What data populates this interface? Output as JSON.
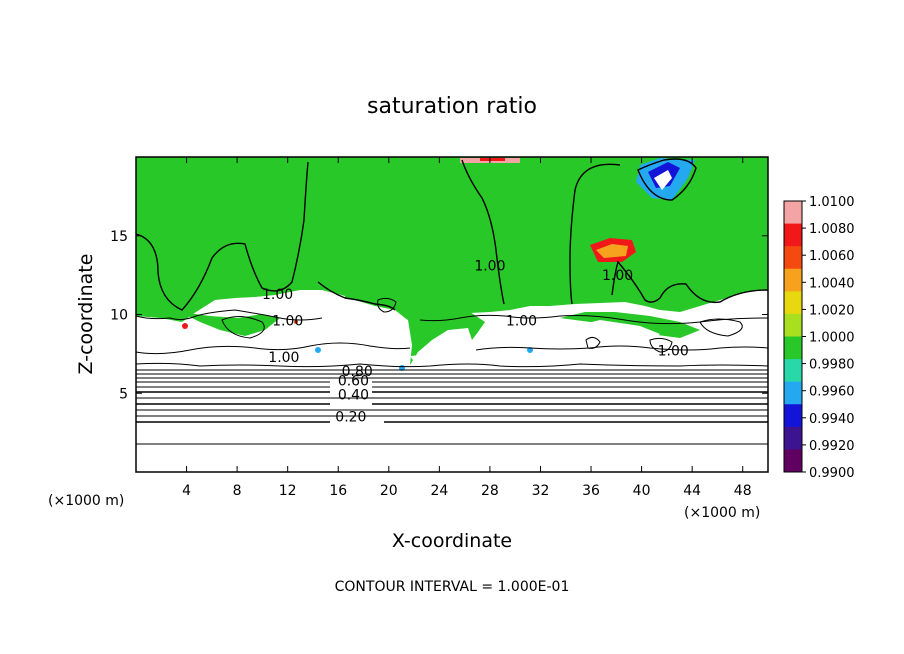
{
  "chart_data": {
    "type": "heatmap",
    "title": "saturation ratio",
    "xlabel": "X-coordinate",
    "ylabel": "Z-coordinate",
    "x_unit_left": "(×1000 m)",
    "x_unit_right": "(×1000 m)",
    "xlim": [
      0,
      50
    ],
    "ylim": [
      0,
      20
    ],
    "x_ticks": [
      4,
      8,
      12,
      16,
      20,
      24,
      28,
      32,
      36,
      40,
      44,
      48
    ],
    "y_ticks": [
      5,
      10,
      15
    ],
    "colorbar": {
      "levels": [
        "1.0100",
        "1.0080",
        "1.0060",
        "1.0040",
        "1.0020",
        "1.0000",
        "0.9980",
        "0.9960",
        "0.9940",
        "0.9920",
        "0.9900"
      ],
      "colors": [
        "#f4a4a4",
        "#f01818",
        "#f44a10",
        "#f7a21e",
        "#e8d810",
        "#a8e020",
        "#28c828",
        "#28d8a8",
        "#24a8f0",
        "#1414d8",
        "#3c1490",
        "#600060"
      ]
    },
    "contour_labels": [
      {
        "text": "1.00",
        "x": 11.2,
        "z": 11.0
      },
      {
        "text": "1.00",
        "x": 12.0,
        "z": 9.3
      },
      {
        "text": "1.00",
        "x": 11.7,
        "z": 7.0
      },
      {
        "text": "1.00",
        "x": 28.0,
        "z": 12.8
      },
      {
        "text": "1.00",
        "x": 30.5,
        "z": 9.3
      },
      {
        "text": "1.00",
        "x": 38.1,
        "z": 12.2
      },
      {
        "text": "1.00",
        "x": 42.5,
        "z": 7.4
      },
      {
        "text": "0.80",
        "x": 17.5,
        "z": 6.1
      },
      {
        "text": "0.60",
        "x": 17.2,
        "z": 5.5
      },
      {
        "text": "0.40",
        "x": 17.2,
        "z": 4.6
      },
      {
        "text": "0.20",
        "x": 17.0,
        "z": 3.2
      }
    ],
    "background_value": "1.0000",
    "footer": "CONTOUR INTERVAL = 1.000E-01"
  }
}
